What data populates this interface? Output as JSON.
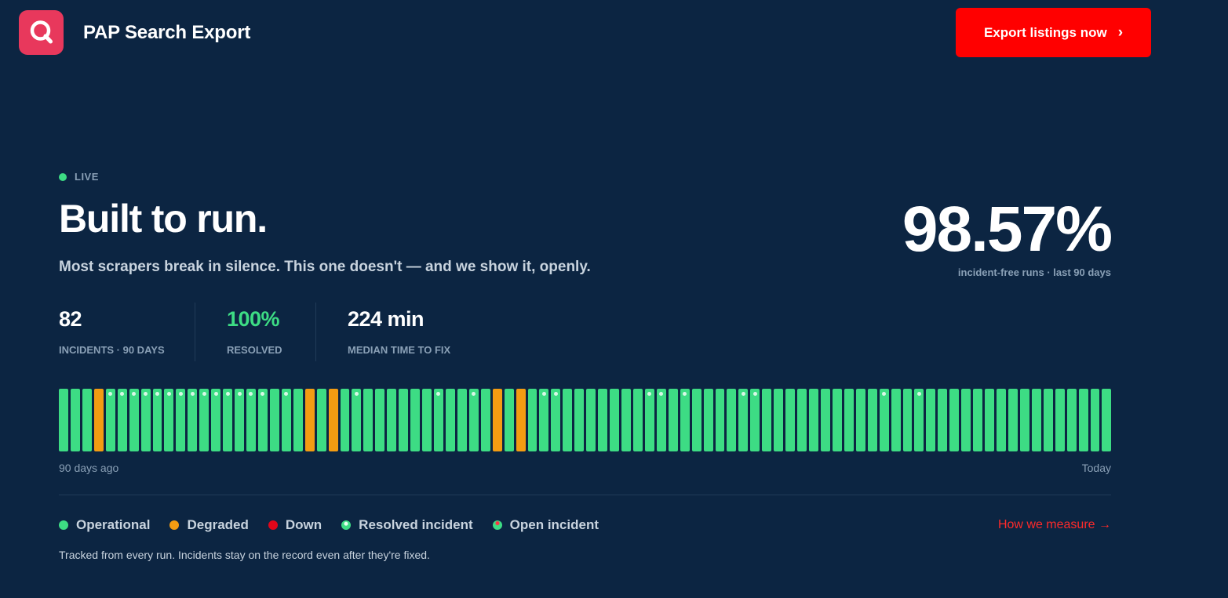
{
  "header": {
    "app_title": "PAP Search Export",
    "logo_icon": "search-icon",
    "cta_label": "Export listings now",
    "cta_icon": "chevron-right-icon",
    "cta_glyph": "›"
  },
  "hero": {
    "live_label": "LIVE",
    "headline": "Built to run.",
    "subtitle": "Most scrapers break in silence. This one doesn't — and we show it, openly.",
    "uptime_value": "98.57%",
    "uptime_caption": "incident-free runs · last 90 days"
  },
  "stats": [
    {
      "value": "82",
      "label": "INCIDENTS · 90 DAYS"
    },
    {
      "value": "100%",
      "label": "RESOLVED"
    },
    {
      "value": "224 min",
      "label": "MEDIAN TIME TO FIX"
    }
  ],
  "timeline": {
    "start_label": "90 days ago",
    "end_label": "Today",
    "days": [
      {
        "status": "operational",
        "incident": false
      },
      {
        "status": "operational",
        "incident": false
      },
      {
        "status": "operational",
        "incident": false
      },
      {
        "status": "degraded",
        "incident": false
      },
      {
        "status": "operational",
        "incident": true
      },
      {
        "status": "operational",
        "incident": true
      },
      {
        "status": "operational",
        "incident": true
      },
      {
        "status": "operational",
        "incident": true
      },
      {
        "status": "operational",
        "incident": true
      },
      {
        "status": "operational",
        "incident": true
      },
      {
        "status": "operational",
        "incident": true
      },
      {
        "status": "operational",
        "incident": true
      },
      {
        "status": "operational",
        "incident": true
      },
      {
        "status": "operational",
        "incident": true
      },
      {
        "status": "operational",
        "incident": true
      },
      {
        "status": "operational",
        "incident": true
      },
      {
        "status": "operational",
        "incident": true
      },
      {
        "status": "operational",
        "incident": true
      },
      {
        "status": "operational",
        "incident": false
      },
      {
        "status": "operational",
        "incident": true
      },
      {
        "status": "operational",
        "incident": false
      },
      {
        "status": "degraded",
        "incident": false
      },
      {
        "status": "operational",
        "incident": false
      },
      {
        "status": "degraded",
        "incident": false
      },
      {
        "status": "operational",
        "incident": false
      },
      {
        "status": "operational",
        "incident": true
      },
      {
        "status": "operational",
        "incident": false
      },
      {
        "status": "operational",
        "incident": false
      },
      {
        "status": "operational",
        "incident": false
      },
      {
        "status": "operational",
        "incident": false
      },
      {
        "status": "operational",
        "incident": false
      },
      {
        "status": "operational",
        "incident": false
      },
      {
        "status": "operational",
        "incident": true
      },
      {
        "status": "operational",
        "incident": false
      },
      {
        "status": "operational",
        "incident": false
      },
      {
        "status": "operational",
        "incident": true
      },
      {
        "status": "operational",
        "incident": false
      },
      {
        "status": "degraded",
        "incident": false
      },
      {
        "status": "operational",
        "incident": false
      },
      {
        "status": "degraded",
        "incident": false
      },
      {
        "status": "operational",
        "incident": false
      },
      {
        "status": "operational",
        "incident": true
      },
      {
        "status": "operational",
        "incident": true
      },
      {
        "status": "operational",
        "incident": false
      },
      {
        "status": "operational",
        "incident": false
      },
      {
        "status": "operational",
        "incident": false
      },
      {
        "status": "operational",
        "incident": false
      },
      {
        "status": "operational",
        "incident": false
      },
      {
        "status": "operational",
        "incident": false
      },
      {
        "status": "operational",
        "incident": false
      },
      {
        "status": "operational",
        "incident": true
      },
      {
        "status": "operational",
        "incident": true
      },
      {
        "status": "operational",
        "incident": false
      },
      {
        "status": "operational",
        "incident": true
      },
      {
        "status": "operational",
        "incident": false
      },
      {
        "status": "operational",
        "incident": false
      },
      {
        "status": "operational",
        "incident": false
      },
      {
        "status": "operational",
        "incident": false
      },
      {
        "status": "operational",
        "incident": true
      },
      {
        "status": "operational",
        "incident": true
      },
      {
        "status": "operational",
        "incident": false
      },
      {
        "status": "operational",
        "incident": false
      },
      {
        "status": "operational",
        "incident": false
      },
      {
        "status": "operational",
        "incident": false
      },
      {
        "status": "operational",
        "incident": false
      },
      {
        "status": "operational",
        "incident": false
      },
      {
        "status": "operational",
        "incident": false
      },
      {
        "status": "operational",
        "incident": false
      },
      {
        "status": "operational",
        "incident": false
      },
      {
        "status": "operational",
        "incident": false
      },
      {
        "status": "operational",
        "incident": true
      },
      {
        "status": "operational",
        "incident": false
      },
      {
        "status": "operational",
        "incident": false
      },
      {
        "status": "operational",
        "incident": true
      },
      {
        "status": "operational",
        "incident": false
      },
      {
        "status": "operational",
        "incident": false
      },
      {
        "status": "operational",
        "incident": false
      },
      {
        "status": "operational",
        "incident": false
      },
      {
        "status": "operational",
        "incident": false
      },
      {
        "status": "operational",
        "incident": false
      },
      {
        "status": "operational",
        "incident": false
      },
      {
        "status": "operational",
        "incident": false
      },
      {
        "status": "operational",
        "incident": false
      },
      {
        "status": "operational",
        "incident": false
      },
      {
        "status": "operational",
        "incident": false
      },
      {
        "status": "operational",
        "incident": false
      },
      {
        "status": "operational",
        "incident": false
      },
      {
        "status": "operational",
        "incident": false
      },
      {
        "status": "operational",
        "incident": false
      },
      {
        "status": "operational",
        "incident": false
      }
    ]
  },
  "legend": {
    "items": [
      {
        "key": "op",
        "label": "Operational"
      },
      {
        "key": "dg",
        "label": "Degraded"
      },
      {
        "key": "dn",
        "label": "Down"
      },
      {
        "key": "ri",
        "label": "Resolved incident"
      },
      {
        "key": "oi",
        "label": "Open incident"
      }
    ],
    "link_label": "How we measure →"
  },
  "footnote": "Tracked from every run. Incidents stay on the record even after they're fixed.",
  "colors": {
    "background": "#0c2542",
    "operational": "#3ddc84",
    "degraded": "#f39c12",
    "down": "#e0061a",
    "accent": "#ff0000",
    "logo": "#e8385c"
  }
}
